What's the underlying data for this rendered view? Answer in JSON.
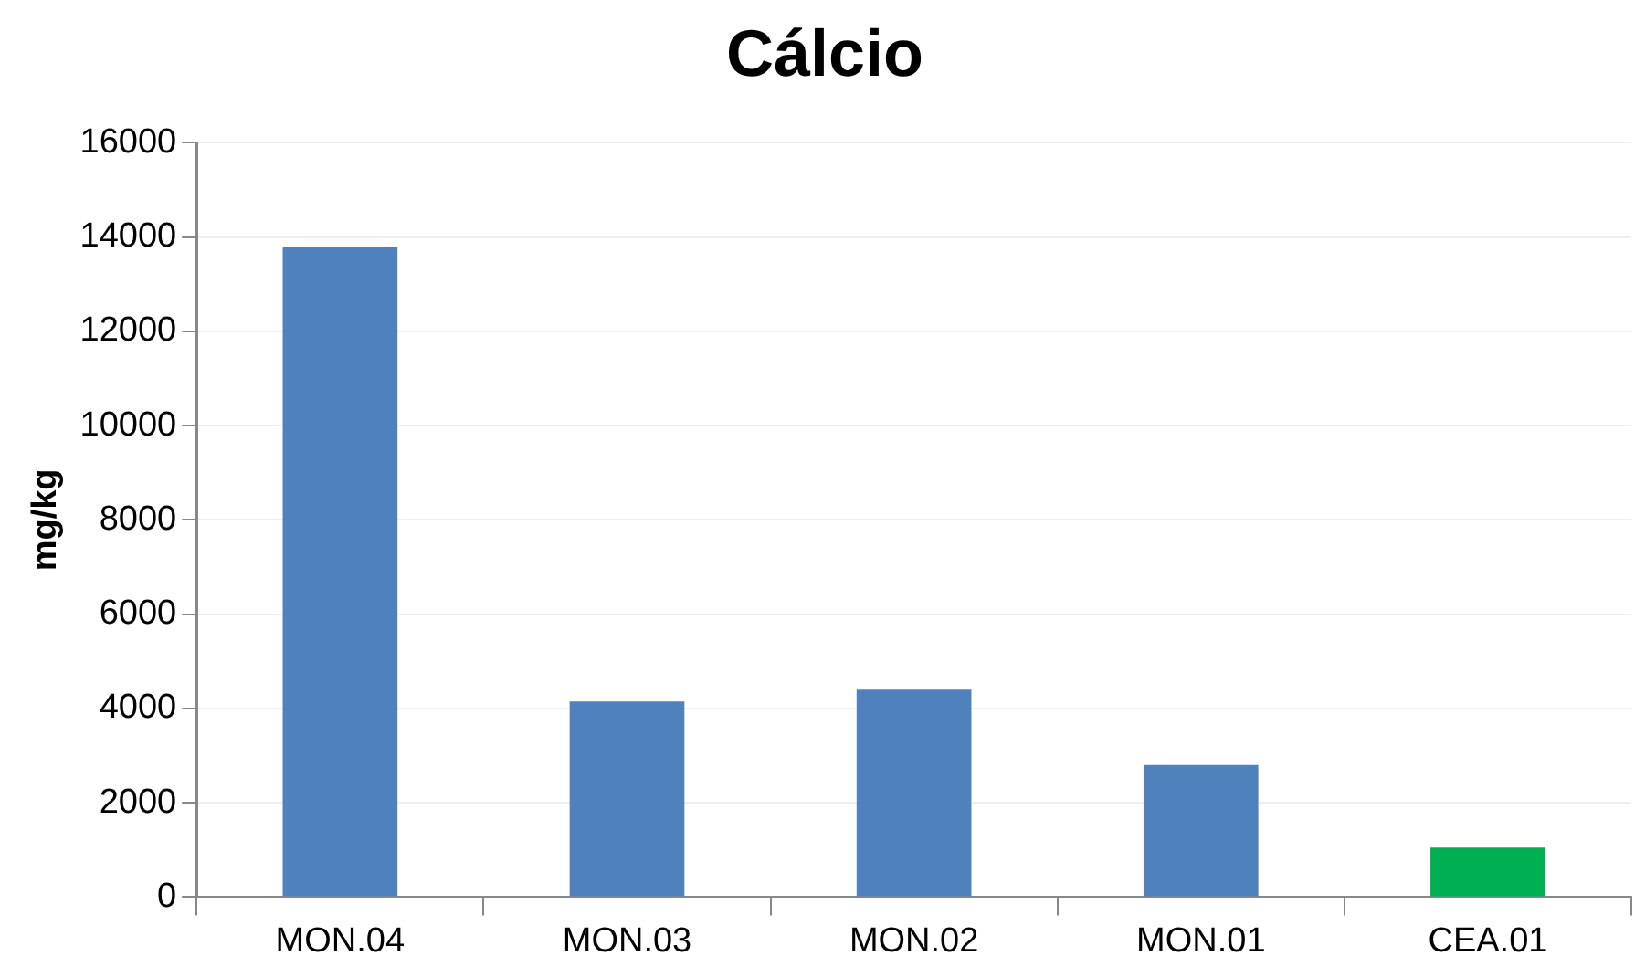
{
  "chart_data": {
    "type": "bar",
    "title": "Cálcio",
    "ylabel": "mg/kg",
    "categories": [
      "MON.04",
      "MON.03",
      "MON.02",
      "MON.01",
      "CEA.01"
    ],
    "values": [
      13800,
      4150,
      4400,
      2800,
      1050
    ],
    "colors": [
      "#4f81bd",
      "#4f81bd",
      "#4f81bd",
      "#4f81bd",
      "#00b050"
    ],
    "ylim": [
      0,
      16000
    ],
    "yticks": [
      0,
      2000,
      4000,
      6000,
      8000,
      10000,
      12000,
      14000,
      16000
    ],
    "grid": "y",
    "legend": false
  }
}
